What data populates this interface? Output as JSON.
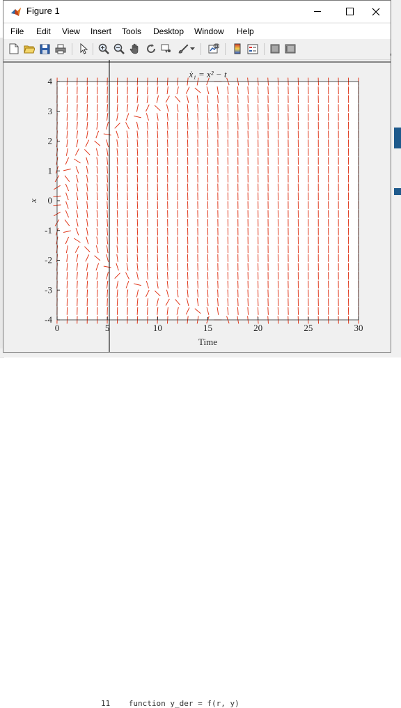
{
  "window": {
    "title": "Figure 1"
  },
  "menu": [
    "File",
    "Edit",
    "View",
    "Insert",
    "Tools",
    "Desktop",
    "Window",
    "Help"
  ],
  "toolbar_icons": [
    "new-figure-icon",
    "open-file-icon",
    "save-icon",
    "print-icon",
    "select-arrow-icon",
    "zoom-in-icon",
    "zoom-out-icon",
    "pan-icon",
    "rotate-3d-icon",
    "data-cursor-icon",
    "brush-icon",
    "link-plot-icon",
    "colorbar-icon",
    "legend-icon",
    "hide-plot-tools-icon",
    "show-plot-tools-icon"
  ],
  "background_code": "function y_der = f(r, y)",
  "background_line_number": "11",
  "chart_data": {
    "type": "quiver",
    "title": "ẋ₁ = x² − t",
    "xlabel": "Time",
    "ylabel": "x",
    "xlim": [
      0,
      30
    ],
    "ylim": [
      -4,
      4
    ],
    "xticks": [
      "0",
      "5",
      "10",
      "15",
      "20",
      "25",
      "30"
    ],
    "yticks": [
      "-4",
      "-3",
      "-2",
      "-1",
      "0",
      "1",
      "2",
      "3",
      "4"
    ],
    "grid": false,
    "field": "dx/dt = x^2 - t",
    "arrow_color": "#e03a1e"
  }
}
